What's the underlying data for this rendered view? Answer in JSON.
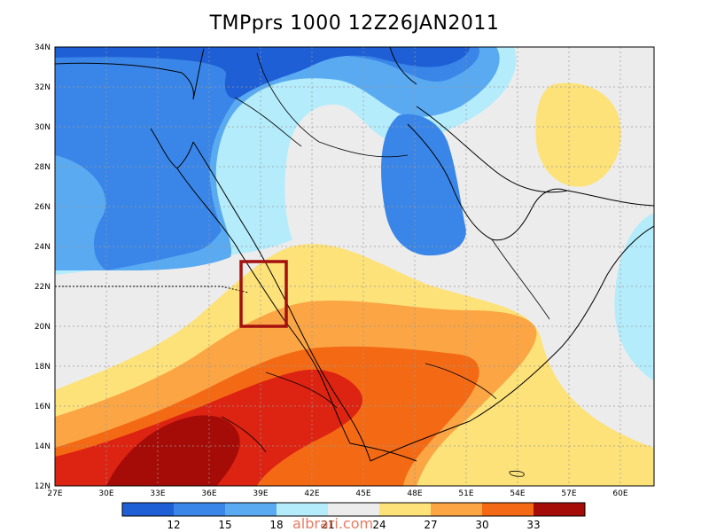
{
  "title": "TMPprs 1000 12Z26JAN2011",
  "colors": {
    "c12": "#1f5fd6",
    "c15": "#3a86e8",
    "c18": "#5aaaf2",
    "c21": "#b4ecfb",
    "c24": "#ececec",
    "c27": "#fde27a",
    "c30": "#fba544",
    "c33a": "#f46a14",
    "c33b": "#dd2312",
    "c36": "#a50c08",
    "highlight_box": "#a41010",
    "coast": "#000000"
  },
  "map": {
    "lon_labels": [
      "27E",
      "30E",
      "33E",
      "36E",
      "39E",
      "42E",
      "45E",
      "48E",
      "51E",
      "54E",
      "57E",
      "60E"
    ],
    "lat_labels": [
      "12N",
      "14N",
      "16N",
      "18N",
      "20N",
      "22N",
      "24N",
      "26N",
      "28N",
      "30N",
      "32N",
      "34N"
    ]
  },
  "colorbar": {
    "labels": [
      "12",
      "15",
      "18",
      "21",
      "24",
      "27",
      "30",
      "33"
    ]
  },
  "watermark": "albrari.com"
}
